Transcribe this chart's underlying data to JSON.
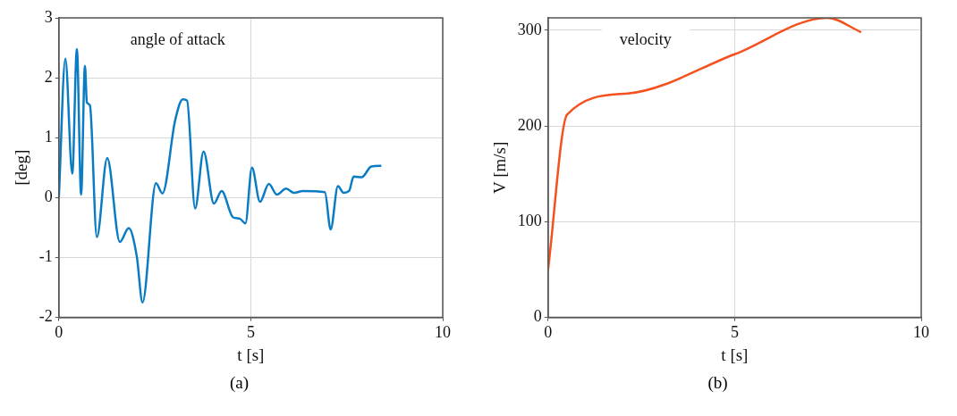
{
  "chart_data": [
    {
      "type": "line",
      "title": "angle of attack",
      "xlabel": "t [s]",
      "ylabel": "[deg]",
      "annotations": [
        "(a)"
      ],
      "grid": true,
      "x": [
        0,
        0.17,
        0.35,
        0.47,
        0.58,
        0.68,
        0.73,
        0.81,
        0.99,
        1.26,
        1.59,
        1.82,
        2.03,
        2.18,
        2.53,
        2.7,
        3.03,
        3.23,
        3.34,
        3.55,
        3.77,
        4.04,
        4.24,
        4.54,
        4.71,
        4.86,
        5.03,
        5.24,
        5.47,
        5.68,
        5.92,
        6.13,
        6.35,
        6.93,
        7.08,
        7.27,
        7.42,
        7.56,
        7.68,
        7.89,
        8.14,
        8.4
      ],
      "series": [
        {
          "color": "#0a7cc4",
          "values": [
            0,
            2.32,
            0.4,
            2.48,
            0.05,
            2.2,
            1.59,
            1.54,
            -0.66,
            0.66,
            -0.74,
            -0.51,
            -0.98,
            -1.75,
            0.24,
            0.07,
            1.29,
            1.64,
            1.62,
            -0.18,
            0.77,
            -0.1,
            0.11,
            -0.33,
            -0.35,
            -0.43,
            0.5,
            -0.07,
            0.23,
            0.05,
            0.15,
            0.08,
            0.11,
            0.09,
            -0.53,
            0.19,
            0.08,
            0.11,
            0.35,
            0.34,
            0.52,
            0.53
          ]
        }
      ],
      "xlim": [
        0,
        10
      ],
      "xticks": [
        0,
        5,
        10
      ],
      "ylim": [
        -2,
        3
      ],
      "yticks": [
        -2,
        -1,
        0,
        1,
        2,
        3
      ]
    },
    {
      "type": "line",
      "title": "velocity",
      "xlabel": "t [s]",
      "ylabel": "V [m/s]",
      "annotations": [
        "(b)"
      ],
      "grid": true,
      "x": [
        0,
        0.51,
        2.14,
        5,
        7.48,
        8.39
      ],
      "series": [
        {
          "color": "#f4511e",
          "values": [
            50,
            212,
            234,
            275,
            313,
            298
          ]
        }
      ],
      "xlim": [
        0,
        10
      ],
      "xticks": [
        0,
        5,
        10
      ],
      "ylim": [
        0,
        313
      ],
      "yticks": [
        0,
        100,
        200,
        300
      ]
    }
  ]
}
